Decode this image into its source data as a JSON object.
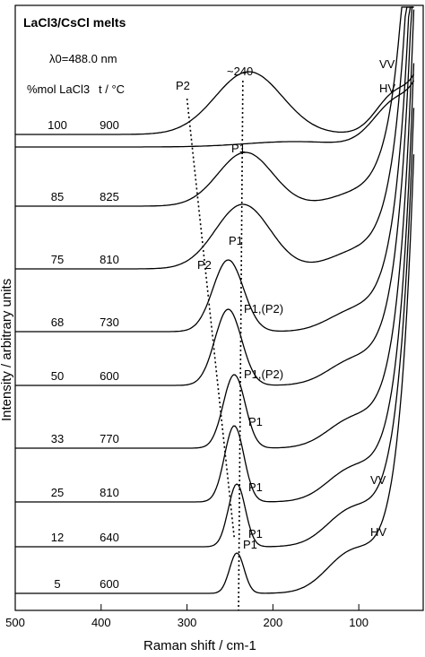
{
  "chart_data": {
    "type": "line",
    "title": "LaCl3/CsCl melts",
    "wavelength_label": "λ0=488.0 nm",
    "peak_note": "~240",
    "xlabel": "Raman shift / cm-1",
    "ylabel": "Intensity / arbitrary units",
    "x_reversed": true,
    "xlim": [
      500,
      25
    ],
    "xticks": [
      500,
      400,
      300,
      200,
      100
    ],
    "col_header_1": "%mol LaCl3",
    "col_header_2": "t / °C",
    "series": [
      {
        "mol": "100",
        "temp": "900",
        "pol": "VV",
        "peak_label": "P2",
        "pol_label": "VV"
      },
      {
        "mol": "100",
        "temp": "900",
        "pol": "HV",
        "peak_label": "",
        "pol_label": "HV"
      },
      {
        "mol": "85",
        "temp": "825",
        "pol": "VV",
        "peak_label": "P1",
        "pol_label": ""
      },
      {
        "mol": "75",
        "temp": "810",
        "pol": "VV",
        "peak_label": "P1",
        "second_label": "P2",
        "pol_label": ""
      },
      {
        "mol": "68",
        "temp": "730",
        "pol": "VV",
        "peak_label": "P1,(P2)",
        "pol_label": ""
      },
      {
        "mol": "50",
        "temp": "600",
        "pol": "VV",
        "peak_label": "P1,(P2)",
        "pol_label": ""
      },
      {
        "mol": "33",
        "temp": "770",
        "pol": "VV",
        "peak_label": "P1",
        "pol_label": ""
      },
      {
        "mol": "25",
        "temp": "810",
        "pol": "VV",
        "peak_label": "P1",
        "pol_label": ""
      },
      {
        "mol": "12",
        "temp": "640",
        "pol": "VV",
        "peak_label": "P1",
        "pol_label": "VV"
      },
      {
        "mol": "5",
        "temp": "600",
        "pol": "VV",
        "peak_label": "P1",
        "pol_label": "HV"
      }
    ]
  }
}
